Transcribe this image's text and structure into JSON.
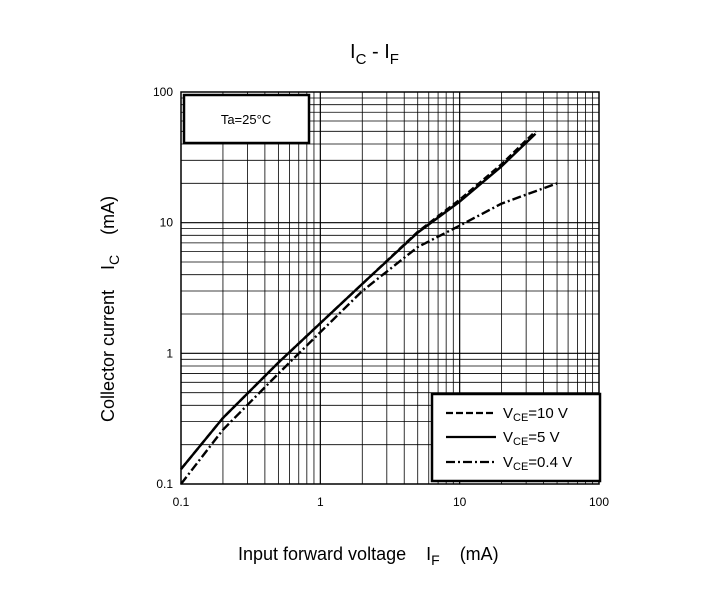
{
  "chart_data": {
    "type": "line",
    "title": {
      "main": "I",
      "main_sub": "C",
      "sep": " - ",
      "second": "I",
      "second_sub": "F"
    },
    "xlabel": {
      "text": "Input forward voltage",
      "symbol": "I",
      "symbol_sub": "F",
      "unit": "(mA)"
    },
    "ylabel": {
      "text": "Collector current",
      "symbol": "I",
      "symbol_sub": "C",
      "unit": "(mA)"
    },
    "x_scale": "log",
    "y_scale": "log",
    "xlim": [
      0.1,
      100
    ],
    "ylim": [
      0.1,
      100
    ],
    "x_ticks": [
      {
        "value": 0.1,
        "label": "0.1"
      },
      {
        "value": 1,
        "label": "1"
      },
      {
        "value": 10,
        "label": "10"
      },
      {
        "value": 100,
        "label": "100"
      }
    ],
    "y_ticks": [
      {
        "value": 0.1,
        "label": "0.1"
      },
      {
        "value": 1,
        "label": "1"
      },
      {
        "value": 10,
        "label": "10"
      },
      {
        "value": 100,
        "label": "100"
      }
    ],
    "grid": true,
    "annotation": "Ta=25°C",
    "legend_position": "bottom-right",
    "series": [
      {
        "name": "VCE=10 V",
        "legend": {
          "sym": "V",
          "sub": "CE",
          "val": "=10  V"
        },
        "style": "dashed",
        "x": [
          0.1,
          0.2,
          0.5,
          1,
          2,
          5,
          10,
          20,
          35
        ],
        "y": [
          0.13,
          0.32,
          0.85,
          1.7,
          3.4,
          8.5,
          15,
          28,
          50
        ]
      },
      {
        "name": "VCE=5 V",
        "legend": {
          "sym": "V",
          "sub": "CE",
          "val": "=5  V"
        },
        "style": "solid",
        "x": [
          0.1,
          0.2,
          0.5,
          1,
          2,
          5,
          10,
          20,
          35
        ],
        "y": [
          0.13,
          0.32,
          0.85,
          1.7,
          3.4,
          8.4,
          14.5,
          27,
          48
        ]
      },
      {
        "name": "VCE=0.4 V",
        "legend": {
          "sym": "V",
          "sub": "CE",
          "val": "=0.4  V"
        },
        "style": "dashdot",
        "x": [
          0.1,
          0.2,
          0.5,
          1,
          2,
          5,
          10,
          20,
          50
        ],
        "y": [
          0.1,
          0.26,
          0.7,
          1.45,
          3,
          6.5,
          9.5,
          14,
          20
        ]
      }
    ]
  }
}
